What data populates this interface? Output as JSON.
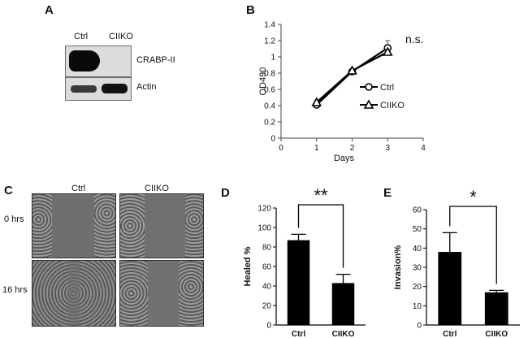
{
  "panels": {
    "a": {
      "letter": "A",
      "lanes": [
        "Ctrl",
        "CIIKO"
      ],
      "bands": [
        "CRABP-II",
        "Actin"
      ]
    },
    "b": {
      "letter": "B"
    },
    "c": {
      "letter": "C",
      "columns": [
        "Ctrl",
        "CIIKO"
      ],
      "rows": [
        "0 hrs",
        "16 hrs"
      ]
    },
    "d": {
      "letter": "D"
    },
    "e": {
      "letter": "E"
    }
  },
  "chart_data": [
    {
      "id": "B",
      "type": "line",
      "xlabel": "Days",
      "ylabel": "OD490",
      "xlim": [
        0,
        4
      ],
      "ylim": [
        0,
        1.4
      ],
      "xticks": [
        "0",
        "1",
        "2",
        "3",
        "4"
      ],
      "yticks": [
        "0",
        "0.2",
        "0.4",
        "0.6",
        "0.8",
        "1",
        "1.2",
        "1.4"
      ],
      "x": [
        1,
        2,
        3
      ],
      "series": [
        {
          "name": "Ctrl",
          "marker": "circle",
          "values": [
            0.41,
            0.82,
            1.11
          ],
          "errors": [
            0.02,
            0.02,
            0.09
          ]
        },
        {
          "name": "CIIKO",
          "marker": "triangle",
          "values": [
            0.44,
            0.83,
            1.06
          ],
          "errors": [
            0.02,
            0.02,
            0.03
          ]
        }
      ],
      "annotation": "n.s.",
      "legend_position": "right"
    },
    {
      "id": "D",
      "type": "bar",
      "categories": [
        "Ctrl",
        "CIIKO"
      ],
      "values": [
        87,
        43
      ],
      "errors": [
        6,
        9
      ],
      "ylabel": "Healed %",
      "ylim": [
        0,
        120
      ],
      "yticks": [
        "0",
        "20",
        "40",
        "60",
        "80",
        "100",
        "120"
      ],
      "significance": "**"
    },
    {
      "id": "E",
      "type": "bar",
      "categories": [
        "Ctrl",
        "CIIKO"
      ],
      "values": [
        38,
        17
      ],
      "errors": [
        10,
        1
      ],
      "ylabel": "Invasion%",
      "ylim": [
        0,
        60
      ],
      "yticks": [
        "0",
        "10",
        "20",
        "30",
        "40",
        "50",
        "60"
      ],
      "significance": "*"
    }
  ]
}
